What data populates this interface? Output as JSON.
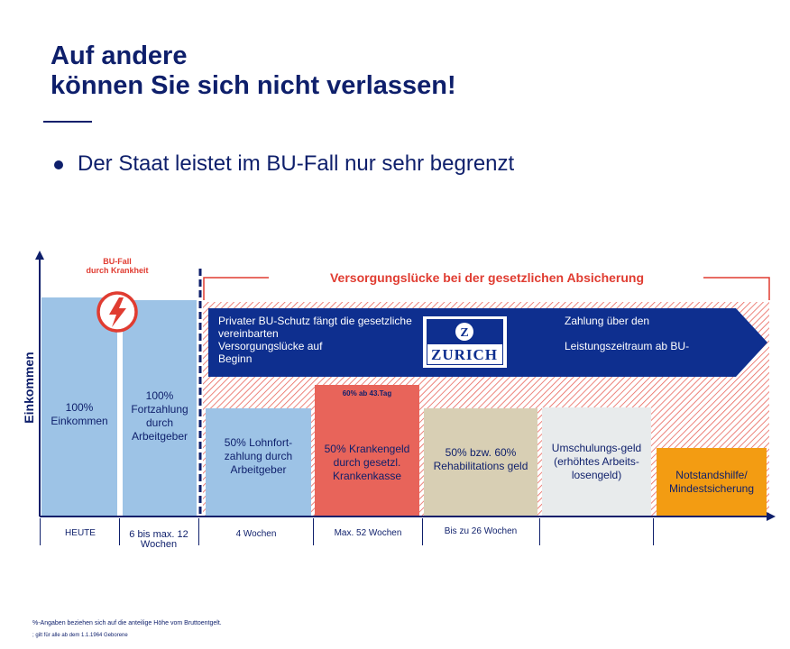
{
  "title_line1": "Auf andere",
  "title_line2": "können Sie sich nicht verlassen!",
  "bullet": "Der Staat leistet im BU-Fall nur sehr begrenzt",
  "colors": {
    "navy": "#0e1f6b",
    "light_blue": "#9dc3e6",
    "red": "#e8645a",
    "beige": "#d8cfb4",
    "light_gray": "#e8ebec",
    "orange": "#f39c12",
    "hatch_red": "#e03c31"
  },
  "diagram": {
    "y_axis_label": "Einkommen",
    "bu_fall_line1": "BU-Fall",
    "bu_fall_line2": "durch Krankheit",
    "gap_label": "Versorgungslücke bei der  gesetzlichen Absicherung",
    "arrow_text_left_1": "Privater BU-Schutz fängt die gesetzliche",
    "arrow_text_left_2": "vereinbarten",
    "arrow_text_left_3": "Versorgungslücke auf",
    "arrow_text_left_4": "Beginn",
    "arrow_text_right_1": "Zahlung über den",
    "arrow_text_right_2": "Leistungszeitraum ab BU-",
    "zurich_logo_text": "ZURICH",
    "bars": {
      "income": "100% Einkommen",
      "employer_100": "100% Fortzahlung durch Arbeitgeber",
      "employer_50": "50% Lohnfort-zahlung durch Arbeitgeber",
      "sick_pay": "50% Krankengeld durch gesetzl. Krankenkasse",
      "sick_pay_note": "60% ab 43.Tag",
      "rehab": "50% bzw. 60% Rehabilitations geld",
      "retraining": "Umschulungs-geld (erhöhtes Arbeits-losengeld)",
      "welfare": "Notstandshilfe/ Mindestsicherung"
    },
    "timeline": {
      "heute": "HEUTE",
      "weeks_6_12": "6 bis max. 12 Wochen",
      "weeks_4": "4 Wochen",
      "weeks_52": "Max. 52 Wochen",
      "weeks_26": "Bis zu 26 Wochen"
    }
  },
  "footnotes": {
    "line1": "%-Angaben  beziehen  sich auf die anteilige  Höhe vom Bruttoentgelt.",
    "line2": "; gilt für alle ab dem  1.1.1964  Geborene"
  }
}
